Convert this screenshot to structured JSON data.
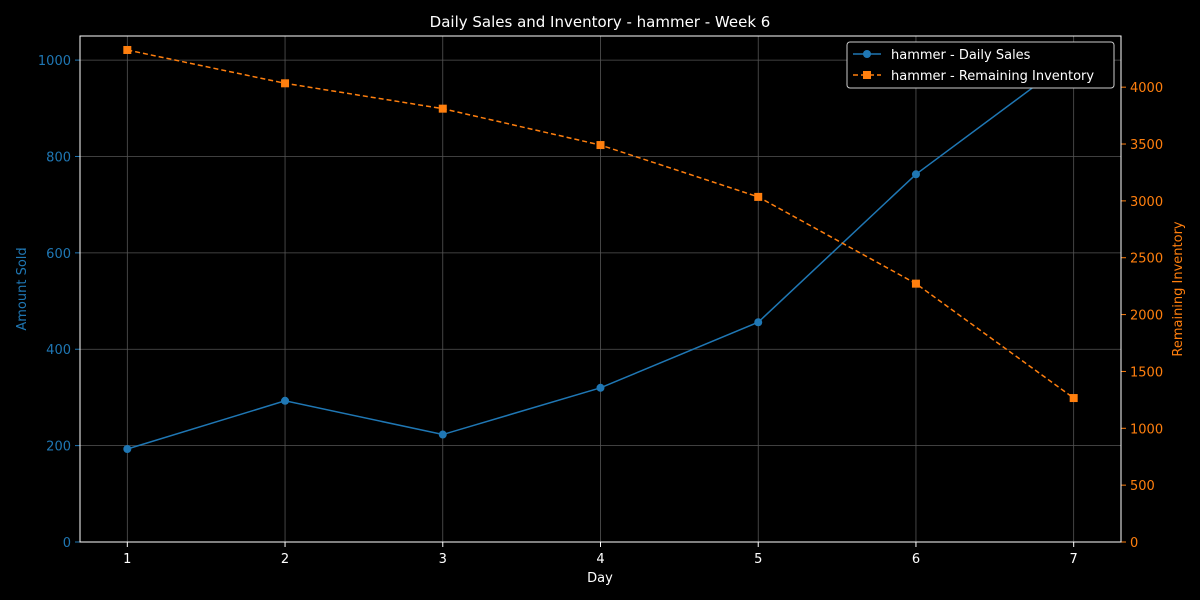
{
  "chart_data": {
    "type": "line",
    "title": "Daily Sales and Inventory - hammer - Week 6",
    "xlabel": "Day",
    "x": [
      1,
      2,
      3,
      4,
      5,
      6,
      7
    ],
    "xlim": [
      0.7,
      7.3
    ],
    "grid": true,
    "legend_position": "top-right",
    "left_axis": {
      "label": "Amount Sold",
      "ylim": [
        0,
        1050
      ],
      "ticks": [
        0,
        200,
        400,
        600,
        800,
        1000
      ],
      "color": "#1f77b4"
    },
    "right_axis": {
      "label": "Remaining Inventory",
      "ylim": [
        0,
        4450
      ],
      "ticks": [
        0,
        500,
        1000,
        1500,
        2000,
        2500,
        3000,
        3500,
        4000
      ],
      "color": "#ff7f0e"
    },
    "series": [
      {
        "name": "hammer - Daily Sales",
        "axis": "left",
        "color": "#1f77b4",
        "marker": "circle",
        "linestyle": "solid",
        "values": [
          193,
          293,
          223,
          320,
          456,
          763,
          1006
        ]
      },
      {
        "name": "hammer - Remaining Inventory",
        "axis": "right",
        "color": "#ff7f0e",
        "marker": "square",
        "linestyle": "dashed",
        "values": [
          4327,
          4034,
          3811,
          3491,
          3035,
          2272,
          1266
        ]
      }
    ]
  }
}
